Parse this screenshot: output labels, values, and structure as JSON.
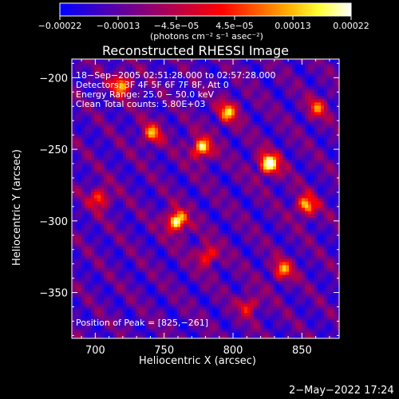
{
  "chart_data": {
    "type": "heatmap",
    "title": "Reconstructed RHESSI Image",
    "xlabel": "Heliocentric X (arcsec)",
    "ylabel": "Heliocentric Y (arcsec)",
    "xlim": [
      683,
      877
    ],
    "ylim": [
      -382,
      -187
    ],
    "xticks": [
      700,
      750,
      800,
      850
    ],
    "xtick_labels": [
      "700",
      "750",
      "800",
      "850"
    ],
    "yticks": [
      -200,
      -250,
      -300,
      -350
    ],
    "ytick_labels": [
      "−200",
      "−250",
      "−300",
      "−350"
    ],
    "colorbar": {
      "range": [
        -0.00022,
        0.00022
      ],
      "tick_labels": [
        "−0.00022",
        "−0.00013",
        "−4.5e−05",
        "4.5e−05",
        "0.00013",
        "0.00022"
      ],
      "colormap": [
        "#0000ff",
        "#3300cc",
        "#660099",
        "#990066",
        "#cc0033",
        "#ff0000",
        "#ff5500",
        "#ffaa00",
        "#ffff33",
        "#ffffff"
      ]
    },
    "annotations": {
      "time": "18−Sep−2005 02:51:28.000 to 02:57:28.000",
      "detectors": "Detectors: 3F 4F 5F 6F 7F 8F, Att 0",
      "energy": "Energy Range: 25.0 − 50.0 keV",
      "clean": "Clean     Total counts: 5.80E+03",
      "peak": "Position of Peak = [825,−261]"
    },
    "peaks": [
      {
        "x": 825,
        "y": -261,
        "intensity": 1.0
      },
      {
        "x": 758,
        "y": -301,
        "intensity": 0.95
      },
      {
        "x": 776,
        "y": -250,
        "intensity": 0.82
      },
      {
        "x": 718,
        "y": -206,
        "intensity": 0.7
      },
      {
        "x": 852,
        "y": -290,
        "intensity": 0.72
      },
      {
        "x": 795,
        "y": -225,
        "intensity": 0.68
      },
      {
        "x": 740,
        "y": -240,
        "intensity": 0.6
      },
      {
        "x": 835,
        "y": -335,
        "intensity": 0.6
      },
      {
        "x": 702,
        "y": -285,
        "intensity": 0.55
      },
      {
        "x": 780,
        "y": -325,
        "intensity": 0.55
      },
      {
        "x": 860,
        "y": -222,
        "intensity": 0.5
      },
      {
        "x": 810,
        "y": -360,
        "intensity": 0.45
      }
    ]
  },
  "colorbar_unit": "(photons cm⁻² s⁻¹ asec⁻²)",
  "footer_timestamp": "2−May−2022 17:24",
  "colors": {
    "background": "#000000",
    "text": "#ffffff"
  }
}
